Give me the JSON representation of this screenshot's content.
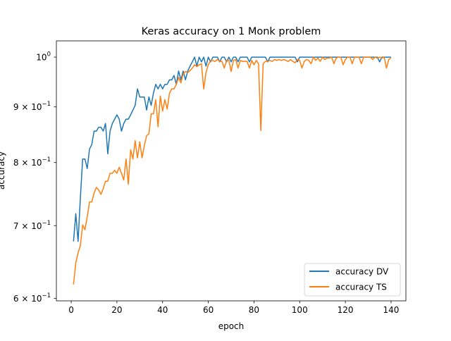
{
  "chart_data": {
    "type": "line",
    "title": "Keras accuracy on 1 Monk problem",
    "xlabel": "epoch",
    "ylabel": "accuracy",
    "yscale": "log",
    "xlim": [
      -6.5,
      146.5
    ],
    "ylim": [
      0.597,
      1.035
    ],
    "xticks": [
      0,
      20,
      40,
      60,
      80,
      100,
      120,
      140
    ],
    "yticks": [
      0.6,
      0.7,
      0.8,
      0.9,
      1.0
    ],
    "ytick_labels": [
      {
        "base": "6",
        "mid": " × ",
        "pow": "10",
        "exp": "−1"
      },
      {
        "base": "7",
        "mid": " × ",
        "pow": "10",
        "exp": "−1"
      },
      {
        "base": "8",
        "mid": " × ",
        "pow": "10",
        "exp": "−1"
      },
      {
        "base": "9",
        "mid": " × ",
        "pow": "10",
        "exp": "−1"
      },
      {
        "base": "",
        "mid": "",
        "pow": "10",
        "exp": "0"
      }
    ],
    "grid": false,
    "legend_position": "lower-right",
    "x": [
      1,
      2,
      3,
      4,
      5,
      6,
      7,
      8,
      9,
      10,
      11,
      12,
      13,
      14,
      15,
      16,
      17,
      18,
      19,
      20,
      21,
      22,
      23,
      24,
      25,
      26,
      27,
      28,
      29,
      30,
      31,
      32,
      33,
      34,
      35,
      36,
      37,
      38,
      39,
      40,
      41,
      42,
      43,
      44,
      45,
      46,
      47,
      48,
      49,
      50,
      51,
      52,
      53,
      54,
      55,
      56,
      57,
      58,
      59,
      60,
      61,
      62,
      63,
      64,
      65,
      66,
      67,
      68,
      69,
      70,
      71,
      72,
      73,
      74,
      75,
      76,
      77,
      78,
      79,
      80,
      81,
      82,
      83,
      84,
      85,
      86,
      87,
      88,
      89,
      90,
      91,
      92,
      93,
      94,
      95,
      96,
      97,
      98,
      99,
      100,
      101,
      102,
      103,
      104,
      105,
      106,
      107,
      108,
      109,
      110,
      111,
      112,
      113,
      114,
      115,
      116,
      117,
      118,
      119,
      120,
      121,
      122,
      123,
      124,
      125,
      126,
      127,
      128,
      129,
      130,
      131,
      132,
      133,
      134,
      135,
      136,
      137,
      138,
      139,
      140
    ],
    "series": [
      {
        "name": "accuracy DV",
        "color": "#1f77b4",
        "values": [
          0.677,
          0.718,
          0.677,
          0.742,
          0.806,
          0.806,
          0.79,
          0.823,
          0.831,
          0.855,
          0.855,
          0.862,
          0.862,
          0.855,
          0.869,
          0.815,
          0.855,
          0.869,
          0.877,
          0.885,
          0.877,
          0.855,
          0.869,
          0.877,
          0.877,
          0.885,
          0.894,
          0.903,
          0.935,
          0.919,
          0.919,
          0.919,
          0.894,
          0.919,
          0.903,
          0.927,
          0.944,
          0.935,
          0.944,
          0.935,
          0.944,
          0.944,
          0.953,
          0.953,
          0.962,
          0.944,
          0.971,
          0.953,
          0.971,
          0.953,
          0.971,
          0.981,
          0.99,
          1.0,
          0.981,
          1.0,
          0.99,
          1.0,
          0.981,
          1.0,
          0.99,
          1.0,
          1.0,
          1.0,
          0.99,
          1.0,
          1.0,
          0.99,
          1.0,
          0.99,
          1.0,
          1.0,
          0.99,
          1.0,
          1.0,
          1.0,
          1.0,
          0.99,
          1.0,
          1.0,
          1.0,
          1.0,
          1.0,
          1.0,
          1.0,
          0.99,
          1.0,
          1.0,
          1.0,
          1.0,
          1.0,
          1.0,
          1.0,
          1.0,
          1.0,
          1.0,
          1.0,
          1.0,
          0.99,
          1.0,
          1.0,
          1.0,
          1.0,
          1.0,
          1.0,
          1.0,
          1.0,
          1.0,
          1.0,
          1.0,
          1.0,
          1.0,
          1.0,
          1.0,
          1.0,
          1.0,
          1.0,
          1.0,
          1.0,
          1.0,
          1.0,
          1.0,
          1.0,
          1.0,
          1.0,
          1.0,
          1.0,
          1.0,
          1.0,
          1.0,
          1.0,
          1.0,
          1.0,
          1.0,
          0.99,
          1.0,
          1.0,
          1.0,
          1.0,
          1.0
        ]
      },
      {
        "name": "accuracy TS",
        "color": "#ff7f0e",
        "values": [
          0.618,
          0.647,
          0.661,
          0.671,
          0.701,
          0.694,
          0.713,
          0.736,
          0.736,
          0.75,
          0.759,
          0.755,
          0.748,
          0.757,
          0.769,
          0.769,
          0.782,
          0.782,
          0.787,
          0.782,
          0.792,
          0.782,
          0.771,
          0.806,
          0.764,
          0.822,
          0.806,
          0.838,
          0.808,
          0.836,
          0.808,
          0.829,
          0.847,
          0.85,
          0.887,
          0.887,
          0.914,
          0.863,
          0.921,
          0.892,
          0.914,
          0.896,
          0.926,
          0.935,
          0.935,
          0.944,
          0.958,
          0.947,
          0.965,
          0.97,
          0.968,
          0.972,
          0.977,
          0.984,
          0.98,
          0.984,
          0.986,
          0.935,
          0.968,
          0.984,
          0.993,
          0.993,
          0.991,
          0.995,
          0.991,
          0.991,
          0.977,
          0.993,
          0.993,
          0.97,
          0.993,
          0.995,
          0.977,
          0.993,
          0.991,
          0.991,
          0.991,
          0.977,
          0.993,
          0.984,
          0.993,
          0.986,
          0.856,
          0.986,
          0.991,
          0.991,
          0.993,
          0.991,
          0.995,
          0.993,
          0.995,
          0.993,
          0.995,
          0.993,
          0.991,
          0.995,
          0.991,
          0.988,
          0.995,
          0.993,
          0.977,
          0.991,
          0.995,
          0.993,
          0.986,
          1.0,
          0.993,
          0.998,
          0.991,
          1.0,
          0.995,
          0.998,
          0.998,
          1.0,
          0.986,
          0.998,
          1.0,
          1.0,
          0.984,
          0.995,
          1.0,
          1.0,
          0.986,
          1.0,
          1.0,
          1.0,
          0.986,
          1.0,
          1.0,
          1.0,
          1.0,
          0.995,
          1.0,
          0.998,
          1.0,
          0.998,
          1.0,
          0.977,
          0.995,
          0.998
        ]
      }
    ]
  }
}
